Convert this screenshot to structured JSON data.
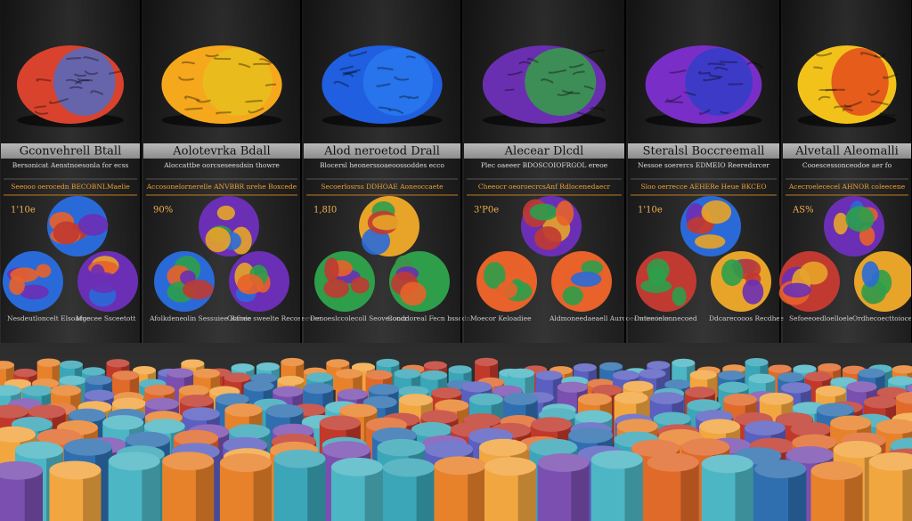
{
  "panels": [
    {
      "title": "Gconvehrell Btall",
      "subtitle": "Bersonicat Aenstnoesonla for ecss",
      "note": "Seeooo oerocedn BECOBNLMaelie",
      "figure": "1'10e",
      "captions": [
        "Nesdeutloncelt Elsoarge",
        "Moccee Ssceetott"
      ]
    },
    {
      "title": "Aolotevrka Bdall",
      "subtitle": "Aloccattbe oorcseseesdsin thowre",
      "note": "Accosonelornerelle ANVBBR nrehe Boxcede",
      "figure": "90%",
      "captions": [
        "Afolkdeneolin Sessuiee Bainie",
        "Ocfnee sweelte Recoseevee"
      ]
    },
    {
      "title": "Alod neroetod Drall",
      "subtitle": "Blocersl heonerssoaeoossoddes ecco",
      "note": "Secoerlosrss DDHOAE Aoneoccaete",
      "figure": "1,8I0",
      "captions": [
        "Denoeslccolecoll Seovesoocr",
        "Conddoreal Fecn bsscdn"
      ]
    },
    {
      "title": "Alecear Dlcdl",
      "subtitle": "Plec oaeeer BDOSCOIOFRGOL ereoe",
      "note": "Cheeocr oeoroecrcsAnf Rdlocenedaecr",
      "figure": "3'P0e",
      "captions": [
        "Moecor Keloadiee",
        "Aldmoneedaeaell Aurcoecoetocinte"
      ]
    },
    {
      "title": "Steralsl Boccreemall",
      "subtitle": "Nessoe soerercs EDMEIO Reeredsrcer",
      "note": "Sloo oerrecce AEHERe Heue BKCEO",
      "figure": "1'10e",
      "captions": [
        "Dnteeoelonnecoed",
        "Ddcarecooos Recdhee"
      ]
    },
    {
      "title": "Alvetall Aleomalli",
      "subtitle": "Cooescessonceodoe aer fo",
      "note": "Acecroelececel AHNOR coleecene",
      "figure": "AS%",
      "captions": [
        "Sefoeeoedloelloele",
        "Ordhecoecttoiocel"
      ]
    }
  ]
}
